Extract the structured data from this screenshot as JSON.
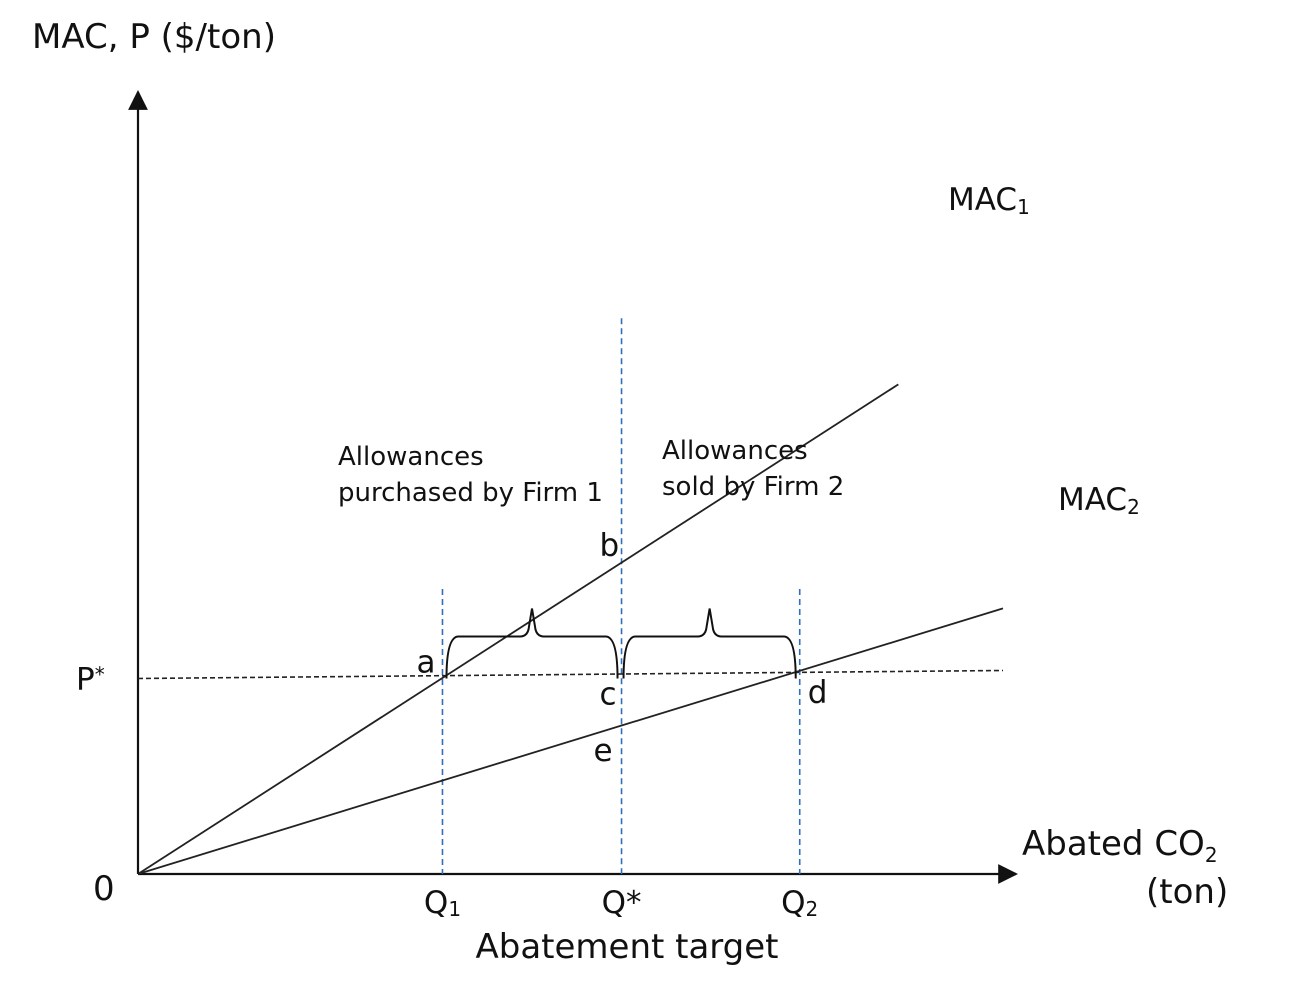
{
  "chart_data": {
    "type": "line",
    "title": "",
    "ylabel": "MAC,  P ($/ton)",
    "xlabel_line1": "Abated CO",
    "xlabel_sub": "2",
    "xlabel_line2": "(ton)",
    "xlim": [
      0,
      100
    ],
    "ylim": [
      0,
      100
    ],
    "origin_label": "0",
    "series": [
      {
        "name": "MAC",
        "name_sub": "1",
        "x": [
          0,
          87.9
        ],
        "y": [
          0,
          85.9
        ],
        "color": "#222222"
      },
      {
        "name": "MAC",
        "name_sub": "2",
        "x": [
          0,
          100
        ],
        "y": [
          0,
          46.6
        ],
        "color": "#222222"
      }
    ],
    "price_line": {
      "label": "P",
      "label_sup": "*",
      "y": 34.3,
      "color": "#222222"
    },
    "x_ticks": [
      {
        "id": "q1",
        "label": "Q",
        "label_sub": "1",
        "x": 35.2
      },
      {
        "id": "qstar",
        "label": "Q*",
        "label_sub": "",
        "x": 55.9
      },
      {
        "id": "q2",
        "label": "Q",
        "label_sub": "2",
        "x": 76.5
      }
    ],
    "x_ticks_caption": "Abatement  target",
    "points": [
      {
        "label": "a",
        "x": 35.2,
        "y": 34.3
      },
      {
        "label": "b",
        "x": 55.9,
        "y": 53.8
      },
      {
        "label": "c",
        "x": 55.9,
        "y": 34.3
      },
      {
        "label": "d",
        "x": 76.5,
        "y": 34.3
      },
      {
        "label": "e",
        "x": 55.9,
        "y": 25.4
      }
    ],
    "annotations": [
      {
        "id": "purchased",
        "line1": "Allowances",
        "line2": "purchased by Firm 1",
        "x_from": 35.2,
        "x_to": 55.9
      },
      {
        "id": "sold",
        "line1": "Allowances",
        "line2": "sold by Firm 2",
        "x_from": 55.9,
        "x_to": 76.5
      }
    ],
    "colors": {
      "axis": "#111111",
      "guide": "#2f6fbf",
      "price": "#222222"
    }
  }
}
